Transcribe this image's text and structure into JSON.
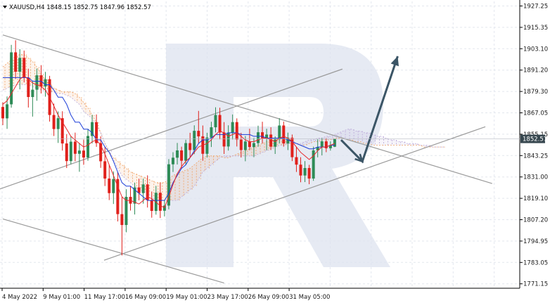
{
  "chart_data": {
    "type": "candlestick",
    "symbol_line": "XAUUSD,H4  1848.15 1852.75 1847.96 1852.57",
    "current_price": 1852.57,
    "y_ticks": [
      "1927.25",
      "1915.35",
      "1903.10",
      "1891.20",
      "1879.30",
      "1867.05",
      "1855.15",
      "1843.25",
      "1831.00",
      "1819.10",
      "1807.20",
      "1794.95",
      "1783.05",
      "1771.15"
    ],
    "x_ticks": [
      "4 May 2022",
      "9 May 01:00",
      "11 May 17:00",
      "16 May 09:00",
      "19 May 01:00",
      "23 May 17:00",
      "26 May 09:00",
      "31 May 05:00"
    ],
    "ylim": [
      1771.15,
      1927.25
    ],
    "grid": true,
    "colors": {
      "bull": "#2e8b57",
      "bear": "#e0201b",
      "tenkan": "#e8262a",
      "kijun": "#1c3ed8",
      "cloud_bull": "#f0a060",
      "cloud_bear": "#b9a6d8",
      "trendline": "#9a9a9a",
      "arrow": "#3b5566",
      "grid": "#e3e7ee",
      "price_tag": "#37474f",
      "watermark": "#dde3ef"
    },
    "candles": [
      [
        1870.5,
        1873.2,
        1860.3,
        1864.1
      ],
      [
        1864.1,
        1876.4,
        1858.2,
        1872.0
      ],
      [
        1872.0,
        1905.4,
        1870.1,
        1901.2
      ],
      [
        1901.2,
        1908.0,
        1886.2,
        1890.3
      ],
      [
        1890.3,
        1903.0,
        1880.4,
        1898.1
      ],
      [
        1898.1,
        1902.2,
        1884.3,
        1887.0
      ],
      [
        1887.0,
        1892.0,
        1870.2,
        1876.1
      ],
      [
        1876.1,
        1885.3,
        1865.1,
        1880.2
      ],
      [
        1880.2,
        1892.1,
        1874.0,
        1888.3
      ],
      [
        1888.3,
        1894.0,
        1878.1,
        1882.0
      ],
      [
        1882.0,
        1890.2,
        1876.3,
        1886.1
      ],
      [
        1886.1,
        1888.0,
        1862.3,
        1866.0
      ],
      [
        1866.0,
        1872.4,
        1854.2,
        1858.1
      ],
      [
        1858.1,
        1868.0,
        1850.3,
        1864.2
      ],
      [
        1864.2,
        1868.1,
        1846.0,
        1850.0
      ],
      [
        1850.0,
        1855.3,
        1836.2,
        1840.1
      ],
      [
        1840.1,
        1854.2,
        1838.3,
        1851.0
      ],
      [
        1851.0,
        1856.1,
        1840.0,
        1844.2
      ],
      [
        1844.2,
        1850.3,
        1834.1,
        1846.0
      ],
      [
        1846.0,
        1852.2,
        1838.0,
        1842.1
      ],
      [
        1842.1,
        1858.0,
        1840.3,
        1854.2
      ],
      [
        1854.2,
        1866.1,
        1850.0,
        1862.0
      ],
      [
        1862.0,
        1866.3,
        1848.1,
        1850.2
      ],
      [
        1850.2,
        1854.0,
        1836.3,
        1840.0
      ],
      [
        1840.0,
        1848.2,
        1826.1,
        1830.3
      ],
      [
        1830.3,
        1838.0,
        1818.2,
        1822.1
      ],
      [
        1822.1,
        1834.3,
        1816.0,
        1830.0
      ],
      [
        1830.0,
        1834.1,
        1806.2,
        1810.3
      ],
      [
        1810.3,
        1820.0,
        1787.1,
        1804.2
      ],
      [
        1804.2,
        1824.3,
        1800.1,
        1820.0
      ],
      [
        1820.0,
        1826.1,
        1812.3,
        1816.2
      ],
      [
        1816.2,
        1828.0,
        1810.1,
        1825.3
      ],
      [
        1825.3,
        1830.2,
        1818.0,
        1822.1
      ],
      [
        1822.1,
        1830.3,
        1816.2,
        1827.0
      ],
      [
        1827.0,
        1832.1,
        1814.0,
        1818.2
      ],
      [
        1818.2,
        1823.0,
        1808.3,
        1812.1
      ],
      [
        1812.1,
        1826.2,
        1810.0,
        1822.3
      ],
      [
        1822.3,
        1828.0,
        1808.1,
        1812.2
      ],
      [
        1812.2,
        1818.3,
        1809.0,
        1815.1
      ],
      [
        1815.1,
        1841.2,
        1813.0,
        1838.3
      ],
      [
        1838.3,
        1845.1,
        1834.0,
        1842.0
      ],
      [
        1842.0,
        1850.3,
        1838.2,
        1846.1
      ],
      [
        1846.1,
        1848.2,
        1836.0,
        1840.3
      ],
      [
        1840.3,
        1852.1,
        1838.0,
        1850.2
      ],
      [
        1850.2,
        1856.0,
        1842.1,
        1846.3
      ],
      [
        1846.3,
        1860.2,
        1844.0,
        1857.1
      ],
      [
        1857.1,
        1868.3,
        1850.2,
        1854.0
      ],
      [
        1854.0,
        1860.1,
        1840.3,
        1844.2
      ],
      [
        1844.2,
        1856.0,
        1842.1,
        1853.3
      ],
      [
        1853.3,
        1862.2,
        1848.0,
        1859.1
      ],
      [
        1859.1,
        1870.3,
        1856.2,
        1866.0
      ],
      [
        1866.0,
        1870.1,
        1852.3,
        1856.2
      ],
      [
        1856.2,
        1862.0,
        1844.1,
        1848.3
      ],
      [
        1848.3,
        1860.2,
        1846.0,
        1856.1
      ],
      [
        1856.1,
        1866.3,
        1852.2,
        1862.0
      ],
      [
        1862.0,
        1864.1,
        1848.3,
        1852.2
      ],
      [
        1852.2,
        1856.0,
        1842.1,
        1846.3
      ],
      [
        1846.3,
        1854.2,
        1840.0,
        1851.1
      ],
      [
        1851.1,
        1858.3,
        1846.2,
        1848.0
      ],
      [
        1848.0,
        1853.1,
        1842.3,
        1850.2
      ],
      [
        1850.2,
        1860.0,
        1848.1,
        1856.3
      ],
      [
        1856.3,
        1862.2,
        1850.0,
        1853.1
      ],
      [
        1853.1,
        1858.3,
        1846.2,
        1855.0
      ],
      [
        1855.0,
        1859.1,
        1846.3,
        1848.2
      ],
      [
        1848.2,
        1854.0,
        1844.1,
        1852.3
      ],
      [
        1852.3,
        1864.2,
        1850.0,
        1860.1
      ],
      [
        1860.1,
        1862.3,
        1848.2,
        1850.0
      ],
      [
        1850.0,
        1856.1,
        1846.3,
        1853.2
      ],
      [
        1853.2,
        1855.0,
        1840.1,
        1842.3
      ],
      [
        1842.3,
        1848.2,
        1834.0,
        1838.1
      ],
      [
        1838.1,
        1842.3,
        1828.2,
        1832.0
      ],
      [
        1832.0,
        1840.1,
        1828.3,
        1836.2
      ],
      [
        1836.2,
        1838.0,
        1827.1,
        1830.3
      ],
      [
        1830.3,
        1848.2,
        1829.0,
        1846.1
      ],
      [
        1846.1,
        1852.3,
        1842.2,
        1848.0
      ],
      [
        1848.0,
        1853.1,
        1843.3,
        1851.2
      ],
      [
        1851.2,
        1853.0,
        1845.1,
        1847.3
      ],
      [
        1847.3,
        1851.2,
        1846.0,
        1849.1
      ],
      [
        1848.15,
        1852.75,
        1847.96,
        1852.57
      ]
    ],
    "tenkan": [
      1872,
      1874,
      1878,
      1882,
      1886,
      1888,
      1886,
      1884,
      1883,
      1882,
      1880,
      1876,
      1871,
      1866,
      1862,
      1858,
      1854,
      1852,
      1850,
      1848,
      1849,
      1851,
      1852,
      1849,
      1844,
      1838,
      1832,
      1826,
      1820,
      1818,
      1818,
      1817,
      1816,
      1818,
      1820,
      1819,
      1817,
      1815,
      1814,
      1820,
      1827,
      1833,
      1837,
      1840,
      1842,
      1845,
      1848,
      1849,
      1850,
      1852,
      1855,
      1857,
      1856,
      1854,
      1855,
      1856,
      1854,
      1852,
      1851,
      1851,
      1852,
      1853,
      1853,
      1852,
      1851,
      1853,
      1854,
      1853,
      1851,
      1848,
      1845,
      1843,
      1841,
      1843,
      1846,
      1848,
      1848,
      1849,
      1850
    ],
    "kijun": [
      1887,
      1887,
      1887,
      1887,
      1887,
      1887,
      1887,
      1885,
      1885,
      1885,
      1883,
      1883,
      1880,
      1876,
      1876,
      1872,
      1866,
      1862,
      1862,
      1858,
      1858,
      1856,
      1852,
      1852,
      1848,
      1845,
      1840,
      1834,
      1828,
      1826,
      1826,
      1824,
      1822,
      1820,
      1818,
      1818,
      1818,
      1818,
      1818,
      1822,
      1828,
      1832,
      1836,
      1838,
      1842,
      1846,
      1850,
      1852,
      1852,
      1853,
      1855,
      1855,
      1855,
      1856,
      1856,
      1856,
      1855,
      1855,
      1855,
      1854,
      1854,
      1854,
      1853,
      1853,
      1853,
      1853,
      1853,
      1852,
      1851,
      1850,
      1849,
      1848,
      1847,
      1847,
      1848,
      1848,
      1848,
      1849,
      1849
    ],
    "cloud_a": [
      1893,
      1895,
      1897,
      1899,
      1900,
      1900,
      1898,
      1896,
      1893,
      1889,
      1886,
      1883,
      1881,
      1880,
      1879,
      1879,
      1879,
      1878,
      1876,
      1873,
      1870,
      1866,
      1862,
      1856,
      1850,
      1845,
      1842,
      1840,
      1838,
      1836,
      1834,
      1833,
      1832,
      1831,
      1830,
      1829,
      1828,
      1828,
      1828,
      1830,
      1832,
      1833,
      1834,
      1835,
      1836,
      1838,
      1840,
      1842,
      1843,
      1843,
      1843,
      1843,
      1842,
      1842,
      1843,
      1844,
      1845,
      1846,
      1847,
      1848,
      1849,
      1850,
      1851,
      1852,
      1853,
      1853,
      1853,
      1852,
      1851,
      1850,
      1849,
      1849,
      1850,
      1851,
      1851,
      1852,
      1852,
      1852,
      1853,
      1853,
      1853,
      1852,
      1852,
      1851,
      1851,
      1850,
      1850,
      1849,
      1849,
      1849,
      1849,
      1849,
      1849,
      1849,
      1849,
      1849,
      1849,
      1849,
      1849,
      1848,
      1848,
      1848,
      1848,
      1848,
      1848
    ],
    "cloud_b": [
      1880,
      1881,
      1882,
      1883,
      1883,
      1883,
      1883,
      1882,
      1881,
      1880,
      1880,
      1879,
      1879,
      1878,
      1878,
      1877,
      1876,
      1874,
      1872,
      1868,
      1866,
      1864,
      1860,
      1856,
      1850,
      1846,
      1841,
      1836,
      1832,
      1830,
      1828,
      1826,
      1824,
      1823,
      1822,
      1820,
      1818,
      1818,
      1818,
      1818,
      1818,
      1818,
      1820,
      1822,
      1824,
      1826,
      1830,
      1834,
      1836,
      1838,
      1840,
      1842,
      1843,
      1843,
      1843,
      1843,
      1843,
      1843,
      1843,
      1843,
      1844,
      1845,
      1846,
      1847,
      1848,
      1849,
      1849,
      1850,
      1850,
      1850,
      1850,
      1851,
      1852,
      1852,
      1853,
      1853,
      1854,
      1854,
      1855,
      1856,
      1857,
      1858,
      1858,
      1857,
      1857,
      1856,
      1856,
      1855,
      1854,
      1854,
      1853,
      1852,
      1852,
      1851,
      1851,
      1850,
      1850,
      1850,
      1849,
      1849,
      1849,
      1848,
      1848,
      1848,
      1848
    ],
    "trendlines": [
      {
        "name": "upper-descending",
        "x1": 0,
        "y1": 1911.0,
        "x2": 115,
        "y2": 1827.5
      },
      {
        "name": "lower-descending",
        "x1": 0,
        "y1": 1807.6,
        "x2": 52,
        "y2": 1771.6
      },
      {
        "name": "lower-ascending",
        "x1": 23.8,
        "y1": 1784.4,
        "x2": 113.4,
        "y2": 1859.4
      },
      {
        "name": "upper-ascending",
        "x1": -3,
        "y1": 1822.5,
        "x2": 79.8,
        "y2": 1891.8
      }
    ],
    "forecast_arrow": [
      [
        79.5,
        1852.0
      ],
      [
        84.5,
        1839.9
      ],
      [
        92.8,
        1899.0
      ]
    ]
  }
}
